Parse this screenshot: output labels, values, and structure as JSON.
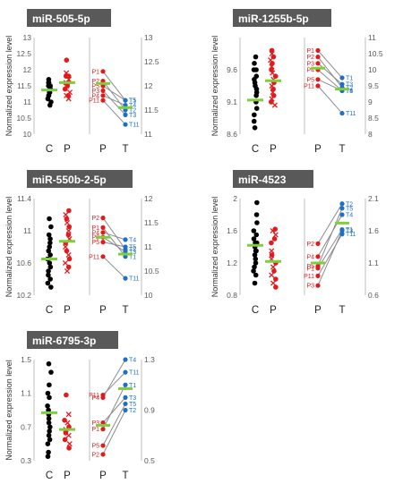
{
  "colors": {
    "control": "#000000",
    "patient": "#e31a1c",
    "tumor": "#1f6fc5",
    "mean": "#7dcf3c",
    "title_bg": "#595959"
  },
  "chart_data": [
    {
      "type": "scatter",
      "title": "miR-505-5p",
      "ylabel": "Normalized expression level",
      "left_axis": {
        "ylim": [
          10,
          13
        ],
        "ticks": [
          "10",
          "10.5",
          "11",
          "11.5",
          "12",
          "12.5",
          "13"
        ]
      },
      "right_axis": {
        "ylim": [
          11,
          13
        ],
        "ticks": [
          "11",
          "11.5",
          "12",
          "12.5",
          "13"
        ]
      },
      "categories": [
        "C",
        "P"
      ],
      "pair_categories": [
        "P",
        "T"
      ],
      "control": {
        "values": [
          11.6,
          11.7,
          11.5,
          11.4,
          11.3,
          11.2,
          11.1,
          11.0,
          10.9,
          11.4,
          11.5,
          11.6,
          11.3,
          11.2
        ],
        "mean": 11.37
      },
      "patient": {
        "values": [
          12.3,
          11.9,
          11.8,
          11.7,
          11.6,
          11.5,
          11.4,
          11.3,
          11.2,
          11.1,
          11.8,
          11.6,
          11.5,
          11.2
        ],
        "mean": 11.6
      },
      "pairs": [
        {
          "label": "P1",
          "tlabel": "T1",
          "p": 12.3,
          "t": 11.7
        },
        {
          "label": "P2",
          "tlabel": "T2",
          "p": 12.1,
          "t": 11.5
        },
        {
          "label": "P3",
          "tlabel": "T3",
          "p": 11.9,
          "t": 11.4
        },
        {
          "label": "P4",
          "tlabel": "T4",
          "p": 11.8,
          "t": 11.6
        },
        {
          "label": "P5",
          "tlabel": "T5",
          "p": 12.0,
          "t": 11.7
        },
        {
          "label": "P11",
          "tlabel": "T11",
          "p": 11.7,
          "t": 11.2
        }
      ],
      "pair_means": {
        "p": 12.05,
        "t": 11.55
      }
    },
    {
      "type": "scatter",
      "title": "miR-1255b-5p",
      "ylabel": "Normalized expression level",
      "left_axis": {
        "ylim": [
          8.6,
          10.1
        ],
        "ticks": [
          "8.6",
          "9.1",
          "9.6"
        ]
      },
      "right_axis": {
        "ylim": [
          8,
          11
        ],
        "ticks": [
          "8",
          "8.5",
          "9",
          "9.5",
          "10",
          "10.5",
          "11"
        ]
      },
      "categories": [
        "C",
        "P"
      ],
      "pair_categories": [
        "P",
        "T"
      ],
      "control": {
        "values": [
          9.8,
          9.7,
          9.6,
          9.5,
          9.45,
          9.4,
          9.35,
          9.3,
          9.2,
          9.1,
          9.0,
          8.9,
          8.8,
          8.7,
          9.6,
          9.25
        ],
        "mean": 9.13
      },
      "patient": {
        "values": [
          9.9,
          9.85,
          9.8,
          9.75,
          9.7,
          9.65,
          9.6,
          9.55,
          9.5,
          9.45,
          9.4,
          9.35,
          9.3,
          9.25,
          9.2,
          9.15,
          9.1,
          9.05
        ],
        "mean": 9.43
      },
      "pairs": [
        {
          "label": "P1",
          "tlabel": "T1",
          "p": 10.6,
          "t": 9.75
        },
        {
          "label": "P2",
          "tlabel": "T2",
          "p": 10.4,
          "t": 9.45
        },
        {
          "label": "P3",
          "tlabel": "T3",
          "p": 10.2,
          "t": 9.55
        },
        {
          "label": "P4",
          "tlabel": "T4",
          "p": 10.0,
          "t": 9.35
        },
        {
          "label": "P5",
          "tlabel": "T5",
          "p": 9.7,
          "t": 9.35
        },
        {
          "label": "P11",
          "tlabel": "T11",
          "p": 9.5,
          "t": 8.65
        }
      ],
      "pair_means": {
        "p": 10.05,
        "t": 9.4
      }
    },
    {
      "type": "scatter",
      "title": "miR-550b-2-5p",
      "ylabel": "Normalized expression level",
      "left_axis": {
        "ylim": [
          10.2,
          11.4
        ],
        "ticks": [
          "10.2",
          "10.6",
          "11",
          "11.4"
        ]
      },
      "right_axis": {
        "ylim": [
          10,
          12
        ],
        "ticks": [
          "10",
          "10.5",
          "11",
          "11.5",
          "12"
        ]
      },
      "categories": [
        "C",
        "P"
      ],
      "pair_categories": [
        "P",
        "T"
      ],
      "control": {
        "values": [
          11.15,
          11.05,
          10.95,
          10.9,
          10.85,
          10.8,
          10.75,
          10.7,
          10.65,
          10.6,
          10.55,
          10.5,
          10.45,
          10.4,
          10.35,
          10.3
        ],
        "mean": 10.65
      },
      "patient": {
        "values": [
          11.25,
          11.2,
          11.15,
          11.1,
          11.05,
          11.0,
          10.95,
          10.9,
          10.85,
          10.8,
          10.75,
          10.7,
          10.65,
          10.6,
          10.55,
          10.5
        ],
        "mean": 10.87
      },
      "pairs": [
        {
          "label": "P1",
          "tlabel": "T1",
          "p": 11.4,
          "t": 10.8
        },
        {
          "label": "P2",
          "tlabel": "T2",
          "p": 11.6,
          "t": 10.95
        },
        {
          "label": "P3",
          "tlabel": "T3",
          "p": 11.2,
          "t": 10.9
        },
        {
          "label": "P4",
          "tlabel": "T4",
          "p": 11.3,
          "t": 11.15
        },
        {
          "label": "P5",
          "tlabel": "T5",
          "p": 11.1,
          "t": 11.0
        },
        {
          "label": "P11",
          "tlabel": "T11",
          "p": 10.8,
          "t": 10.35
        }
      ],
      "pair_means": {
        "p": 11.2,
        "t": 10.85
      }
    },
    {
      "type": "scatter",
      "title": "miR-4523",
      "ylabel": "Normalized expression level",
      "left_axis": {
        "ylim": [
          0.8,
          2.0
        ],
        "ticks": [
          "0.8",
          "1.2",
          "1.6",
          "2"
        ]
      },
      "right_axis": {
        "ylim": [
          0.6,
          2.1
        ],
        "ticks": [
          "0.6",
          "1.1",
          "1.6",
          "2.1"
        ]
      },
      "categories": [
        "C",
        "P"
      ],
      "pair_categories": [
        "P",
        "T"
      ],
      "control": {
        "values": [
          1.95,
          1.8,
          1.7,
          1.6,
          1.55,
          1.5,
          1.45,
          1.4,
          1.35,
          1.3,
          1.25,
          1.2,
          1.15,
          1.1,
          1.05,
          0.95,
          1.45,
          1.35
        ],
        "mean": 1.42
      },
      "patient": {
        "values": [
          1.62,
          1.55,
          1.45,
          1.35,
          1.3,
          1.25,
          1.2,
          1.15,
          1.1,
          1.05,
          1.0,
          0.95,
          0.9,
          1.6,
          1.5
        ],
        "mean": 1.22
      },
      "pairs": [
        {
          "label": "P1",
          "tlabel": "T1",
          "p": 1.02,
          "t": 1.62
        },
        {
          "label": "P2",
          "tlabel": "T2",
          "p": 1.4,
          "t": 2.02
        },
        {
          "label": "P3",
          "tlabel": "T3",
          "p": 0.75,
          "t": 1.6
        },
        {
          "label": "P4",
          "tlabel": "T4",
          "p": 1.2,
          "t": 1.85
        },
        {
          "label": "P5",
          "tlabel": "T5",
          "p": 1.05,
          "t": 1.95
        },
        {
          "label": "P11",
          "tlabel": "T11",
          "p": 0.9,
          "t": 1.55
        }
      ],
      "pair_means": {
        "p": 1.1,
        "t": 1.72
      }
    },
    {
      "type": "scatter",
      "title": "miR-6795-3p",
      "ylabel": "Normalized expression level",
      "left_axis": {
        "ylim": [
          0.3,
          1.5
        ],
        "ticks": [
          "0.3",
          "0.7",
          "1.1",
          "1.5"
        ]
      },
      "right_axis": {
        "ylim": [
          0.5,
          1.3
        ],
        "ticks": [
          "0.5",
          "0.9",
          "1.3"
        ]
      },
      "categories": [
        "C",
        "P"
      ],
      "pair_categories": [
        "P",
        "T"
      ],
      "control": {
        "values": [
          1.45,
          1.35,
          1.2,
          1.1,
          1.05,
          0.95,
          0.9,
          0.85,
          0.8,
          0.75,
          0.7,
          0.65,
          0.6,
          0.55,
          0.5,
          0.4,
          0.35
        ],
        "mean": 0.87
      },
      "patient": {
        "values": [
          1.08,
          0.85,
          0.78,
          0.75,
          0.7,
          0.67,
          0.63,
          0.6,
          0.55,
          0.5,
          0.45
        ],
        "mean": 0.67
      },
      "pairs": [
        {
          "label": "P1",
          "tlabel": "T1",
          "p": 0.75,
          "t": 1.1
        },
        {
          "label": "P2",
          "tlabel": "T2",
          "p": 0.55,
          "t": 0.9
        },
        {
          "label": "P3",
          "tlabel": "T3",
          "p": 0.8,
          "t": 1.0
        },
        {
          "label": "P4",
          "tlabel": "T4",
          "p": 1.0,
          "t": 1.3
        },
        {
          "label": "P5",
          "tlabel": "T5",
          "p": 0.62,
          "t": 0.95
        },
        {
          "label": "P11",
          "tlabel": "T11",
          "p": 1.02,
          "t": 1.2
        }
      ],
      "pair_means": {
        "p": 0.78,
        "t": 1.07
      }
    }
  ]
}
